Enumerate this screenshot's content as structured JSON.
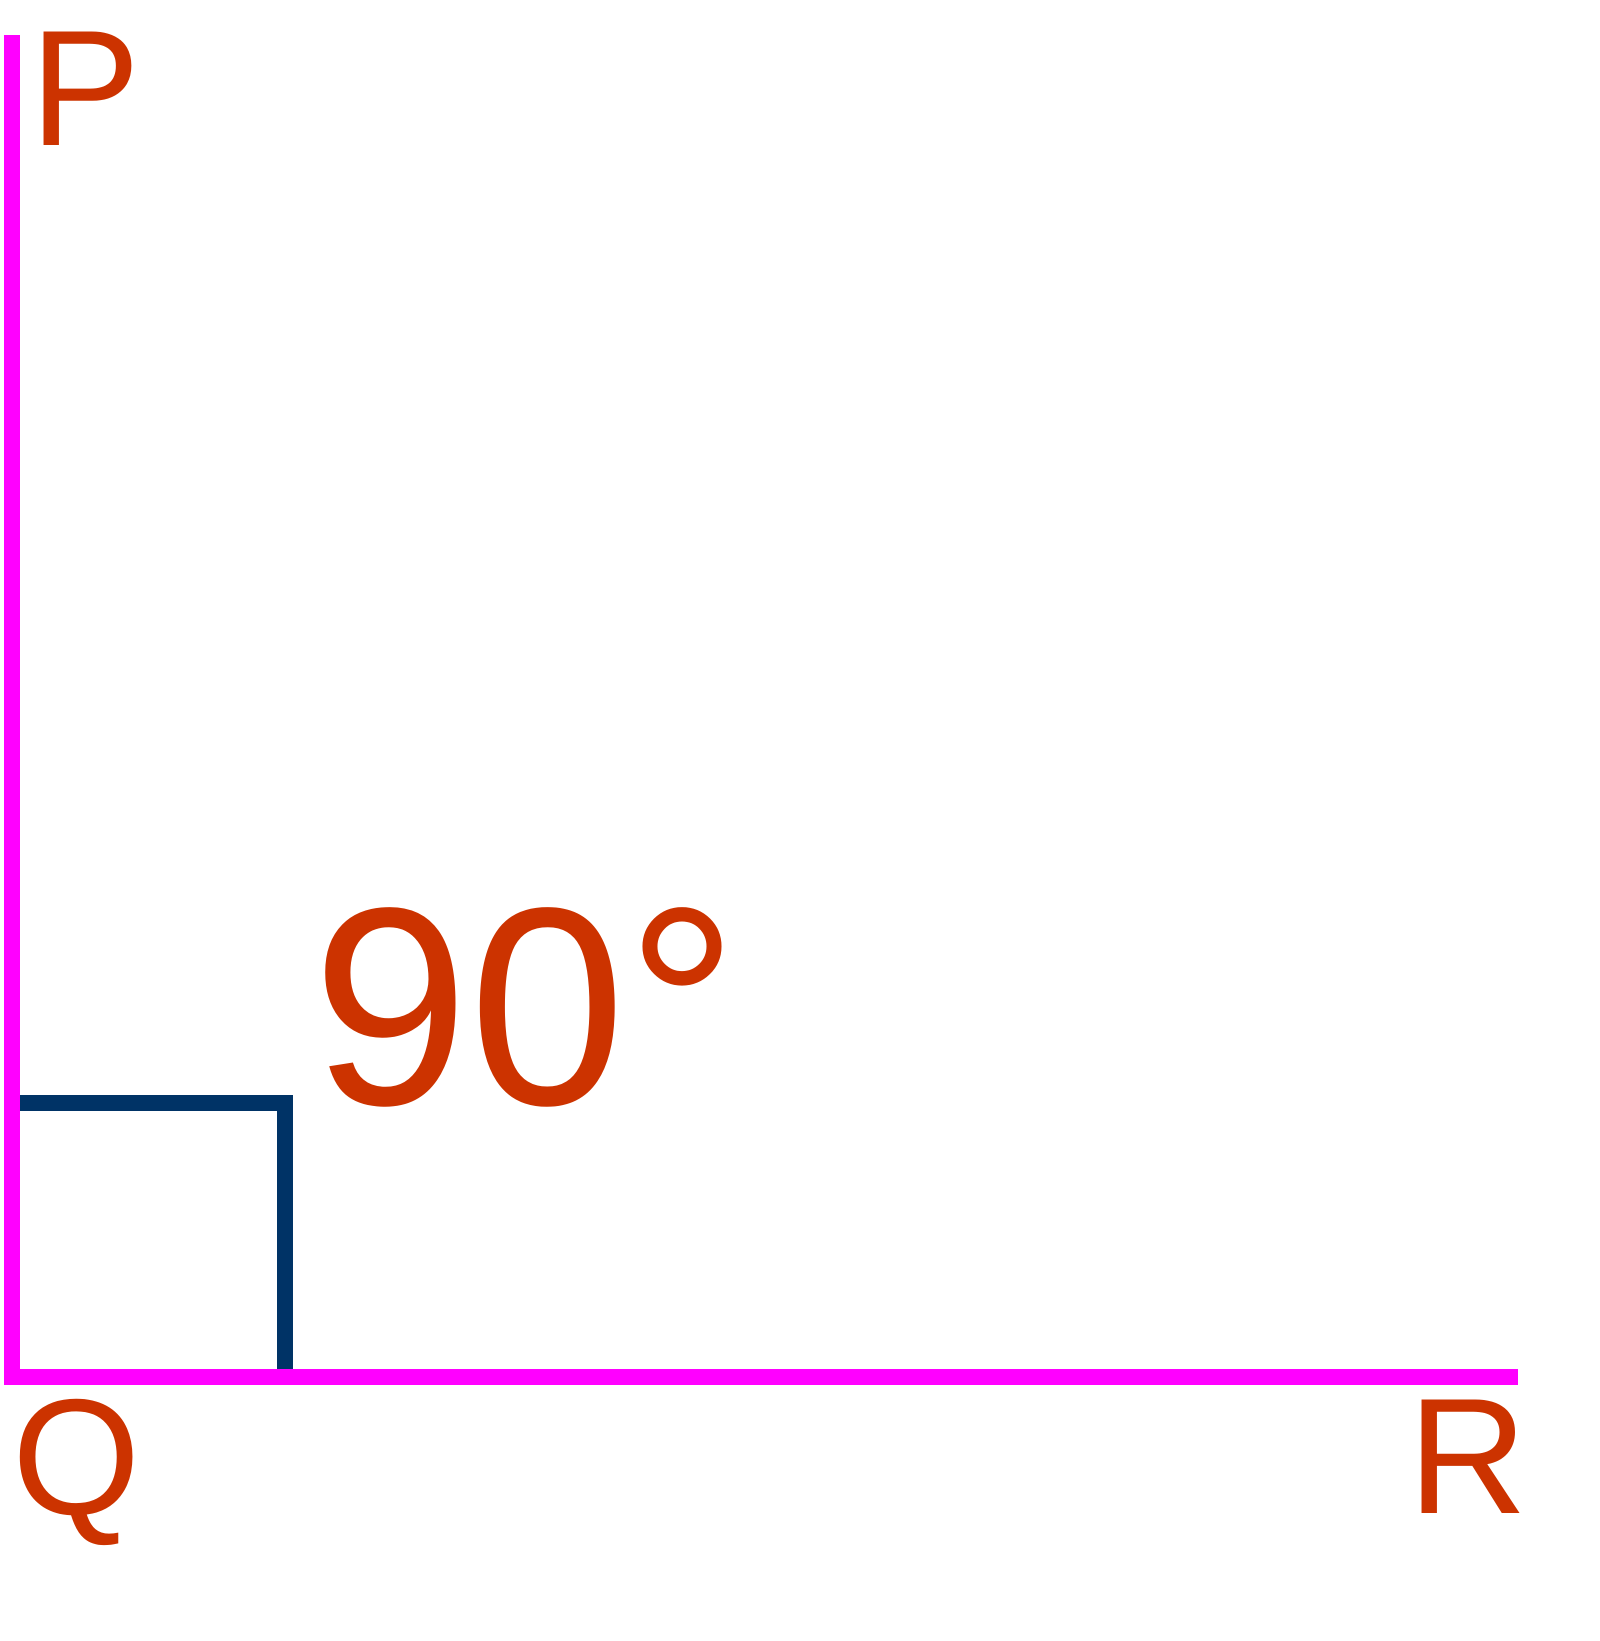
{
  "vertices": [
    {
      "label": "P"
    },
    {
      "label": "Q"
    },
    {
      "label": "R"
    }
  ],
  "angle": {
    "label": "90°"
  }
}
